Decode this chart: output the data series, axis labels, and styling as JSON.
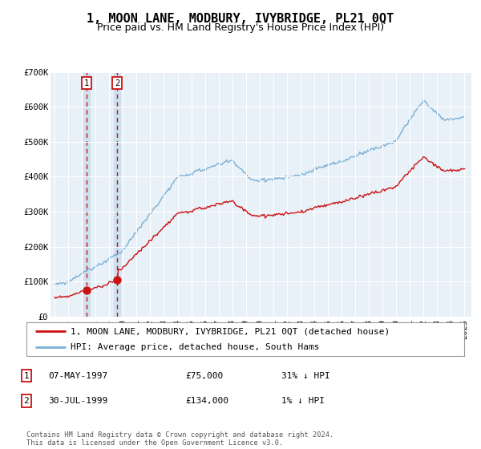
{
  "title": "1, MOON LANE, MODBURY, IVYBRIDGE, PL21 0QT",
  "subtitle": "Price paid vs. HM Land Registry's House Price Index (HPI)",
  "ylim": [
    0,
    700000
  ],
  "yticks": [
    0,
    100000,
    200000,
    300000,
    400000,
    500000,
    600000,
    700000
  ],
  "ytick_labels": [
    "£0",
    "£100K",
    "£200K",
    "£300K",
    "£400K",
    "£500K",
    "£600K",
    "£700K"
  ],
  "xlim_start": 1994.7,
  "xlim_end": 2025.5,
  "background_color": "#ffffff",
  "plot_bg_color": "#e8f0f8",
  "grid_color": "#ffffff",
  "hpi_color": "#7ab0d4",
  "price_color": "#cc1111",
  "sale1_date": 1997.35,
  "sale1_price": 75000,
  "sale2_date": 1999.58,
  "sale2_price": 134000,
  "shade_color": "#cfe0ef",
  "legend_label_price": "1, MOON LANE, MODBURY, IVYBRIDGE, PL21 0QT (detached house)",
  "legend_label_hpi": "HPI: Average price, detached house, South Hams",
  "table_rows": [
    {
      "num": "1",
      "date": "07-MAY-1997",
      "price": "£75,000",
      "hpi": "31% ↓ HPI"
    },
    {
      "num": "2",
      "date": "30-JUL-1999",
      "price": "£134,000",
      "hpi": "1% ↓ HPI"
    }
  ],
  "footnote": "Contains HM Land Registry data © Crown copyright and database right 2024.\nThis data is licensed under the Open Government Licence v3.0.",
  "title_fontsize": 11,
  "subtitle_fontsize": 9,
  "tick_fontsize": 7.5,
  "legend_fontsize": 8
}
